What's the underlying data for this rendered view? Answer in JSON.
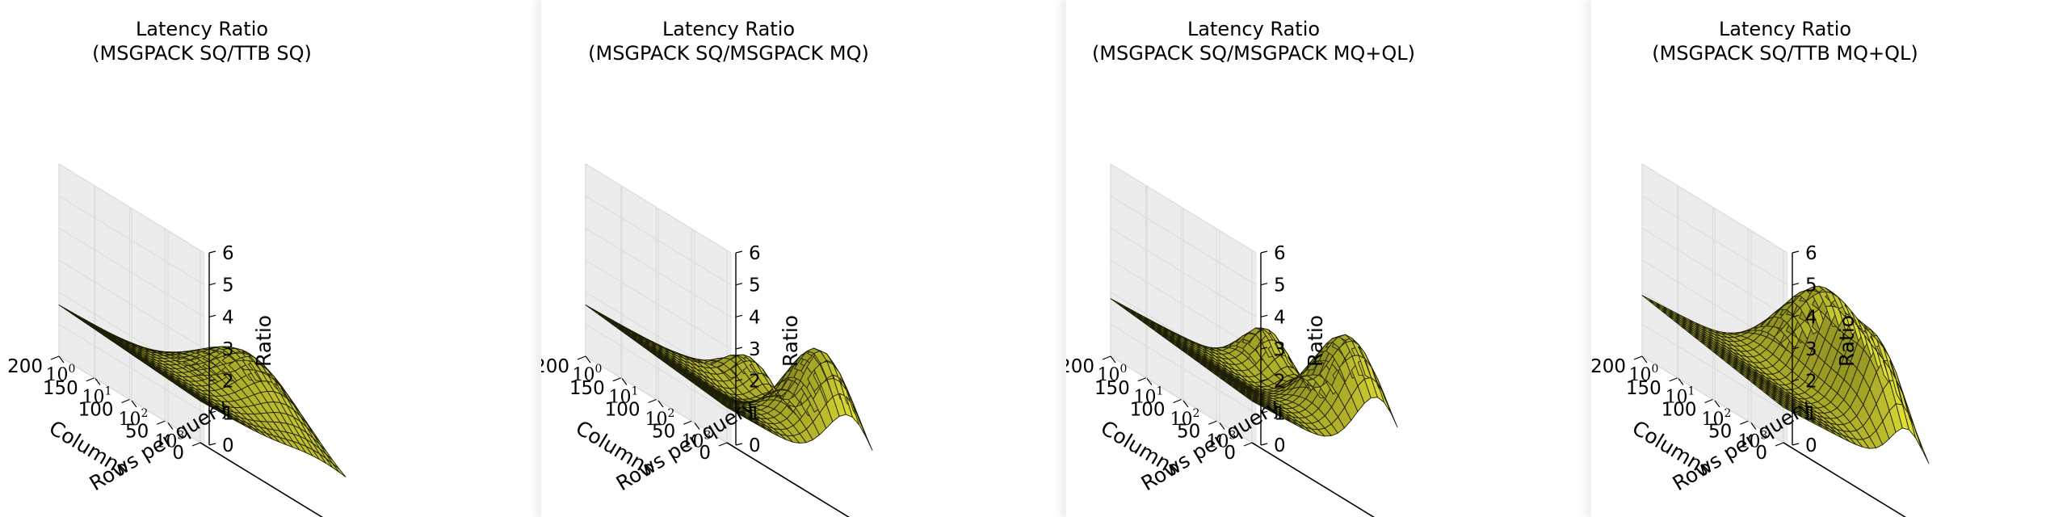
{
  "figure": {
    "colors": {
      "surface": "#c8c82e",
      "surface_dark": "#8a8a14",
      "mesh": "#1f1f08",
      "pane": "#f2f2f2",
      "grid": "#dcdcdc"
    }
  },
  "chart_data": [
    {
      "type": "surface",
      "title": "Latency Ratio\n(MSGPACK SQ/TTB SQ)",
      "xlabel": "Columns",
      "ylabel": "Rows per query",
      "zlabel": "Ratio",
      "x_ticks": [
        "0",
        "50",
        "100",
        "150",
        "200"
      ],
      "y_ticks": [
        "10^0",
        "10^1",
        "10^2",
        "10^3"
      ],
      "z_ticks": [
        "0",
        "1",
        "2",
        "3",
        "4",
        "5",
        "6"
      ],
      "xlim": [
        0,
        200
      ],
      "ylim": [
        1,
        10000
      ],
      "zlim": [
        0,
        6
      ],
      "y_scale": "log",
      "grid": true,
      "surface": {
        "base": 1.3,
        "x_slope": 0.3,
        "y_slope": 0.2,
        "peak": 2.2,
        "peak_x": 100,
        "peak_y": 3.3,
        "spread_x": 70,
        "spread_y": 1.2,
        "peak2": 0.0,
        "peak2_x": 0,
        "peak2_y": 0,
        "ripple": 0.1
      }
    },
    {
      "type": "surface",
      "title": "Latency Ratio\n(MSGPACK SQ/MSGPACK MQ)",
      "xlabel": "Columns",
      "ylabel": "Rows per query",
      "zlabel": "Ratio",
      "x_ticks": [
        "0",
        "50",
        "100",
        "150",
        "200"
      ],
      "y_ticks": [
        "10^0",
        "10^1",
        "10^2",
        "10^3"
      ],
      "z_ticks": [
        "0",
        "1",
        "2",
        "3",
        "4",
        "5",
        "6"
      ],
      "xlim": [
        0,
        200
      ],
      "ylim": [
        1,
        10000
      ],
      "zlim": [
        0,
        6
      ],
      "y_scale": "log",
      "grid": true,
      "surface": {
        "base": 1.1,
        "x_slope": 0.5,
        "y_slope": 0.2,
        "peak": 3.0,
        "peak_x": 40,
        "peak_y": 3.4,
        "spread_x": 60,
        "spread_y": 0.9,
        "peak2": 1.2,
        "peak2_x": 150,
        "peak2_y": 3.7,
        "ripple": 0.35
      }
    },
    {
      "type": "surface",
      "title": "Latency Ratio\n(MSGPACK SQ/MSGPACK MQ+QL)",
      "xlabel": "Columns",
      "ylabel": "Rows per query",
      "zlabel": "Ratio",
      "x_ticks": [
        "0",
        "50",
        "100",
        "150",
        "200"
      ],
      "y_ticks": [
        "10^0",
        "10^1",
        "10^2",
        "10^3"
      ],
      "z_ticks": [
        "0",
        "1",
        "2",
        "3",
        "4",
        "5",
        "6"
      ],
      "xlim": [
        0,
        200
      ],
      "ylim": [
        1,
        10000
      ],
      "zlim": [
        0,
        6
      ],
      "y_scale": "log",
      "grid": true,
      "surface": {
        "base": 1.3,
        "x_slope": 0.5,
        "y_slope": 0.3,
        "peak": 3.3,
        "peak_x": 40,
        "peak_y": 3.5,
        "spread_x": 65,
        "spread_y": 0.9,
        "peak2": 1.6,
        "peak2_x": 160,
        "peak2_y": 3.6,
        "ripple": 0.25
      }
    },
    {
      "type": "surface",
      "title": "Latency Ratio\n(MSGPACK SQ/TTB MQ+QL)",
      "xlabel": "Columns",
      "ylabel": "Rows per query",
      "zlabel": "Ratio",
      "x_ticks": [
        "0",
        "50",
        "100",
        "150",
        "200"
      ],
      "y_ticks": [
        "10^0",
        "10^1",
        "10^2",
        "10^3"
      ],
      "z_ticks": [
        "0",
        "1",
        "2",
        "3",
        "4",
        "5",
        "6"
      ],
      "xlim": [
        0,
        200
      ],
      "ylim": [
        1,
        10000
      ],
      "zlim": [
        0,
        6
      ],
      "y_scale": "log",
      "grid": true,
      "surface": {
        "base": 1.1,
        "x_slope": 0.8,
        "y_slope": 0.4,
        "peak": 4.0,
        "peak_x": 110,
        "peak_y": 3.5,
        "spread_x": 70,
        "spread_y": 0.9,
        "peak2": 1.8,
        "peak2_x": 30,
        "peak2_y": 3.4,
        "ripple": 0.3
      }
    }
  ]
}
